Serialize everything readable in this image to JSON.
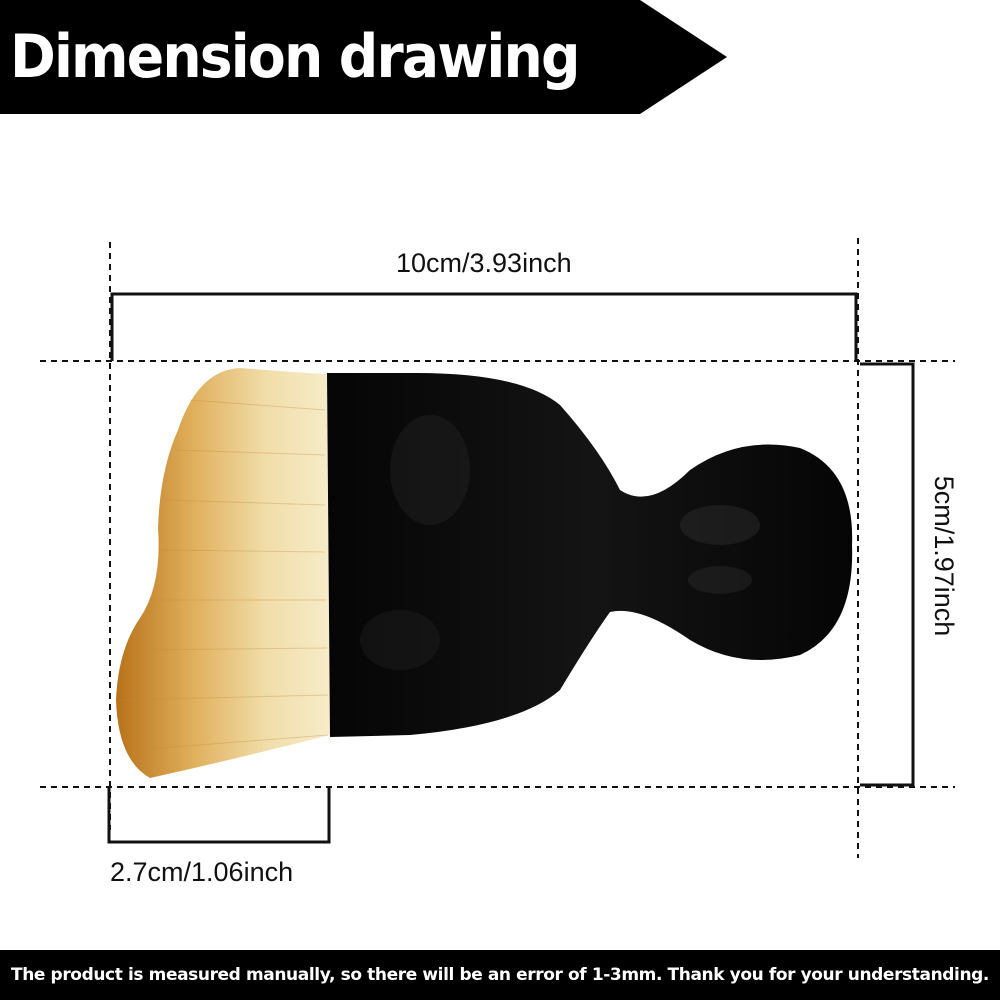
{
  "banner": {
    "title": "Dimension drawing"
  },
  "dimensions": {
    "total_width": "10cm/3.93inch",
    "height": "5cm/1.97inch",
    "bristle_width": "2.7cm/1.06inch"
  },
  "footer": {
    "note": "The product is measured manually, so there will be an error of 1-3mm. Thank you for your understanding."
  },
  "colors": {
    "banner": "#000000",
    "handle": "#0a0a0a",
    "bristle_tip": "#b8721a",
    "bristle_base": "#f3e6bf"
  }
}
